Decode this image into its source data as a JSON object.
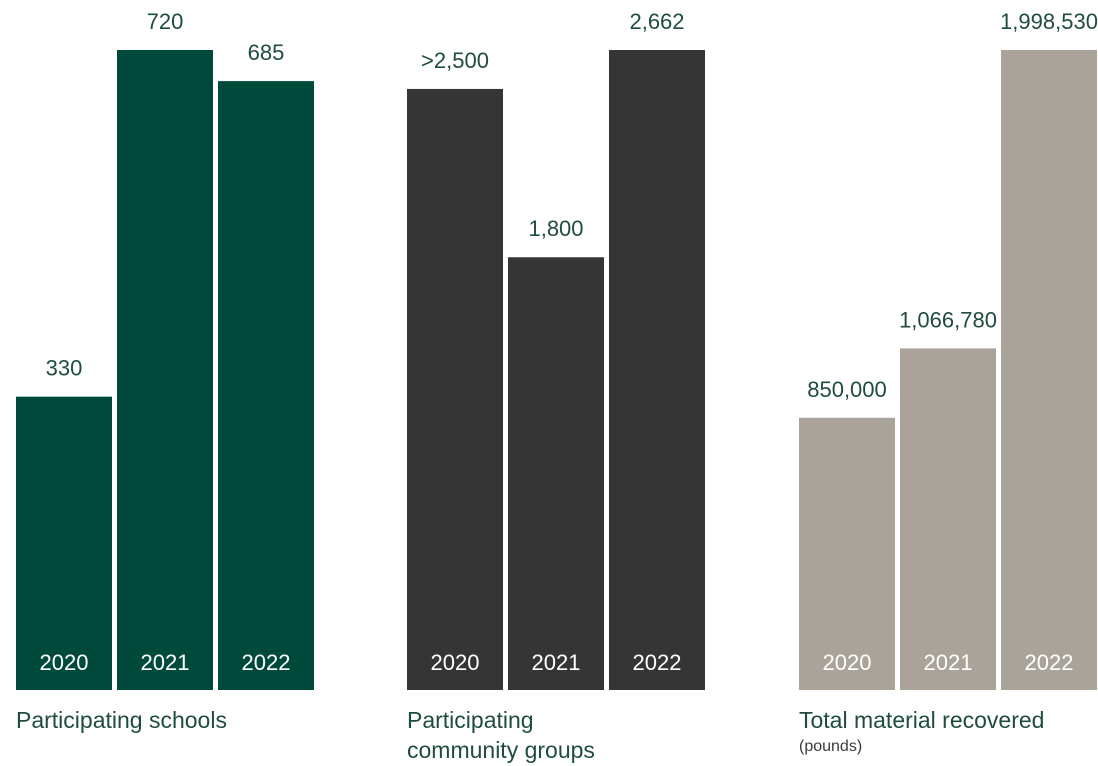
{
  "chart_data": [
    {
      "type": "bar",
      "title_lines": [
        "Participating schools"
      ],
      "subtitle": "",
      "categories": [
        "2020",
        "2021",
        "2022"
      ],
      "values": [
        330,
        720,
        685
      ],
      "value_labels": [
        "330",
        "720",
        "685"
      ],
      "ylim": [
        0,
        720
      ],
      "color": "#004a3c",
      "category_label_color": "#ffffff"
    },
    {
      "type": "bar",
      "title_lines": [
        "Participating",
        "community groups"
      ],
      "subtitle": "",
      "categories": [
        "2020",
        "2021",
        "2022"
      ],
      "values": [
        2500,
        1800,
        2662
      ],
      "value_labels": [
        ">2,500",
        "1,800",
        "2,662"
      ],
      "ylim": [
        0,
        2662
      ],
      "color": "#353535",
      "category_label_color": "#ffffff"
    },
    {
      "type": "bar",
      "title_lines": [
        "Total material recovered"
      ],
      "subtitle": "(pounds)",
      "categories": [
        "2020",
        "2021",
        "2022"
      ],
      "values": [
        850000,
        1066780,
        1998530
      ],
      "value_labels": [
        "850,000",
        "1,066,780",
        "1,998,530"
      ],
      "ylim": [
        0,
        1998530
      ],
      "color": "#aaa399",
      "category_label_color": "#ffffff"
    }
  ]
}
